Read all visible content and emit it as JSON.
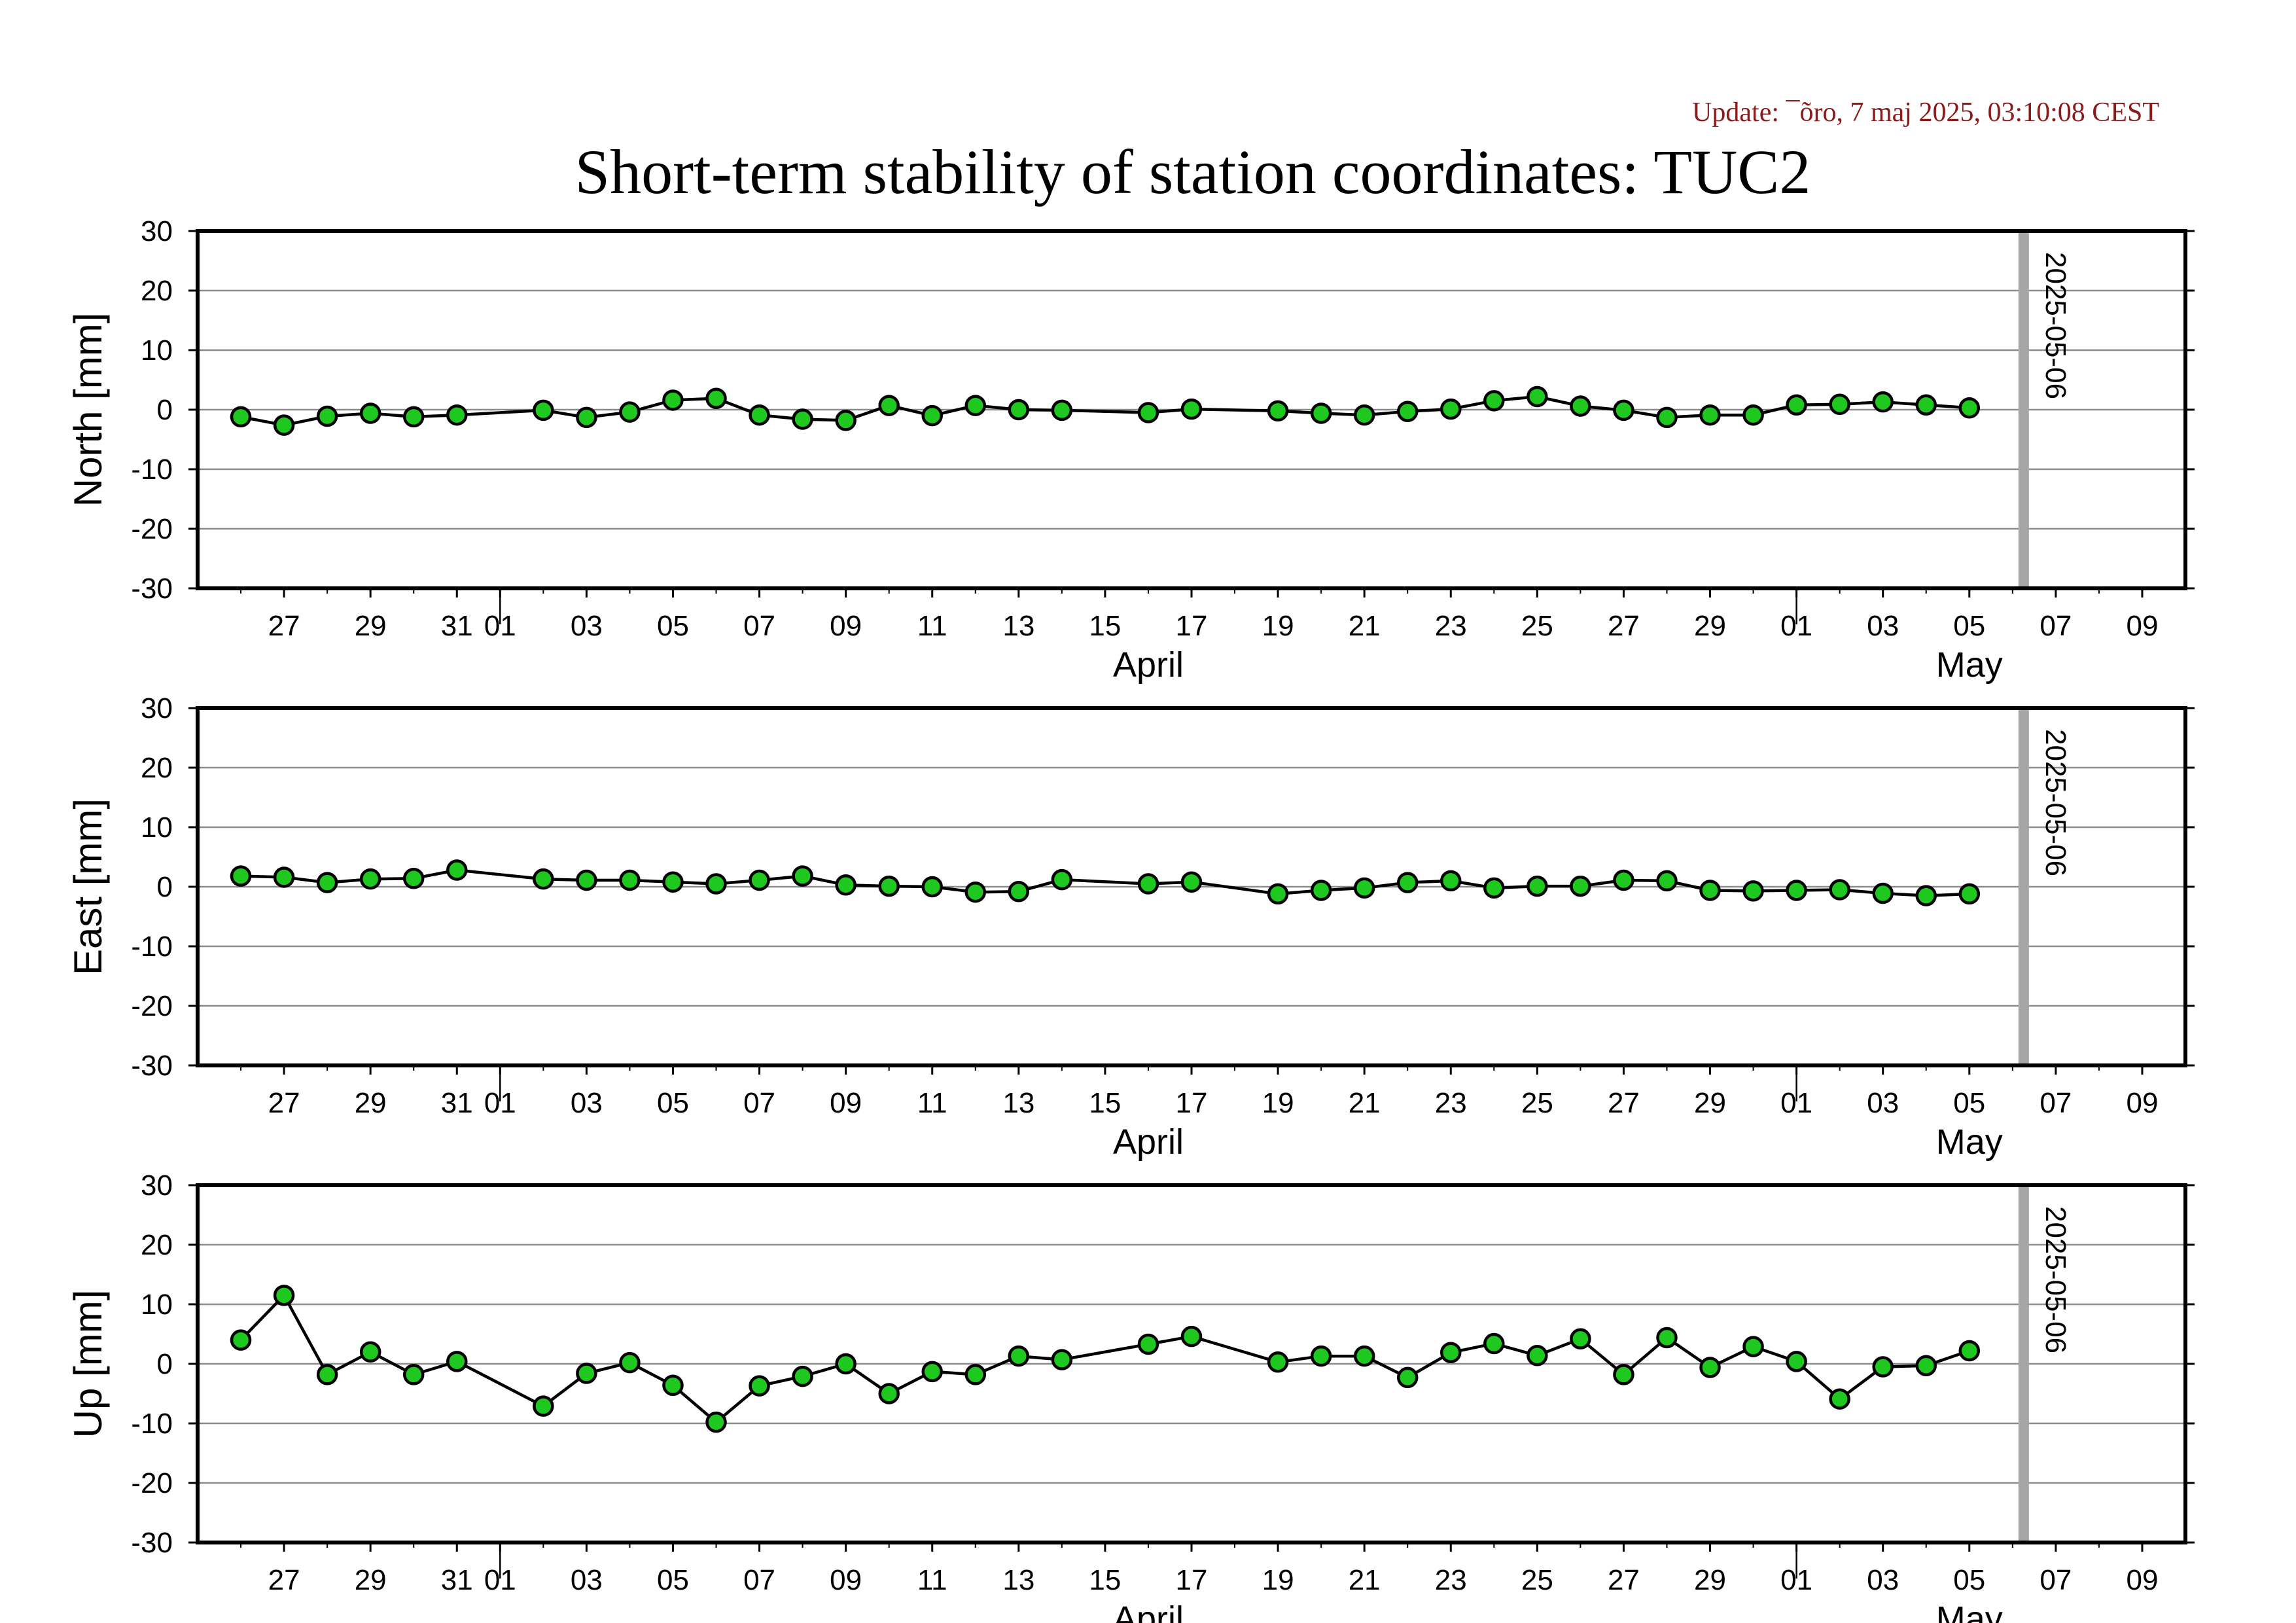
{
  "update_text": "Update: ¯õro, 7 maj 2025, 03:10:08 CEST",
  "update_color": "#8b1a1a",
  "title": "Short-term stability of station coordinates: TUC2",
  "colors": {
    "point_fill": "#1ec81e",
    "point_stroke": "#000000",
    "line": "#000000",
    "grid": "#8c8c8c",
    "current_date_line": "#a6a6a6"
  },
  "chart_data": [
    {
      "type": "line",
      "panel": "north",
      "ylabel": "North [mm]",
      "ylim": [
        -30,
        30
      ],
      "yticks": [
        "30",
        "20",
        "10",
        "0",
        "-10",
        "-20",
        "-30"
      ],
      "xlim": [
        "2025-03-25",
        "2025-05-10"
      ],
      "xtick_labels": [
        {
          "date": "2025-03-27",
          "label": "27"
        },
        {
          "date": "2025-03-29",
          "label": "29"
        },
        {
          "date": "2025-03-31",
          "label": "31"
        },
        {
          "date": "2025-04-01",
          "label": "01"
        },
        {
          "date": "2025-04-03",
          "label": "03"
        },
        {
          "date": "2025-04-05",
          "label": "05"
        },
        {
          "date": "2025-04-07",
          "label": "07"
        },
        {
          "date": "2025-04-09",
          "label": "09"
        },
        {
          "date": "2025-04-11",
          "label": "11"
        },
        {
          "date": "2025-04-13",
          "label": "13"
        },
        {
          "date": "2025-04-15",
          "label": "15"
        },
        {
          "date": "2025-04-17",
          "label": "17"
        },
        {
          "date": "2025-04-19",
          "label": "19"
        },
        {
          "date": "2025-04-21",
          "label": "21"
        },
        {
          "date": "2025-04-23",
          "label": "23"
        },
        {
          "date": "2025-04-25",
          "label": "25"
        },
        {
          "date": "2025-04-27",
          "label": "27"
        },
        {
          "date": "2025-04-29",
          "label": "29"
        },
        {
          "date": "2025-05-01",
          "label": "01"
        },
        {
          "date": "2025-05-03",
          "label": "03"
        },
        {
          "date": "2025-05-05",
          "label": "05"
        },
        {
          "date": "2025-05-07",
          "label": "07"
        },
        {
          "date": "2025-05-09",
          "label": "09"
        }
      ],
      "month_labels": [
        {
          "date": "2025-04-16",
          "label": "April"
        },
        {
          "date": "2025-05-05",
          "label": "May"
        }
      ],
      "current_date": "2025-05-06",
      "current_date_label": "2025-05-06",
      "grid": true,
      "points": [
        {
          "x": "2025-03-26",
          "y": -1.2
        },
        {
          "x": "2025-03-27",
          "y": -2.6
        },
        {
          "x": "2025-03-28",
          "y": -1.1
        },
        {
          "x": "2025-03-29",
          "y": -0.6
        },
        {
          "x": "2025-03-30",
          "y": -1.2
        },
        {
          "x": "2025-03-31",
          "y": -0.9
        },
        {
          "x": "2025-04-02",
          "y": -0.1
        },
        {
          "x": "2025-04-03",
          "y": -1.3
        },
        {
          "x": "2025-04-04",
          "y": -0.4
        },
        {
          "x": "2025-04-05",
          "y": 1.6
        },
        {
          "x": "2025-04-06",
          "y": 1.9
        },
        {
          "x": "2025-04-07",
          "y": -0.9
        },
        {
          "x": "2025-04-08",
          "y": -1.6
        },
        {
          "x": "2025-04-09",
          "y": -1.8
        },
        {
          "x": "2025-04-10",
          "y": 0.7
        },
        {
          "x": "2025-04-11",
          "y": -1.0
        },
        {
          "x": "2025-04-12",
          "y": 0.7
        },
        {
          "x": "2025-04-13",
          "y": 0.0
        },
        {
          "x": "2025-04-14",
          "y": -0.1
        },
        {
          "x": "2025-04-16",
          "y": -0.5
        },
        {
          "x": "2025-04-17",
          "y": 0.1
        },
        {
          "x": "2025-04-19",
          "y": -0.2
        },
        {
          "x": "2025-04-20",
          "y": -0.6
        },
        {
          "x": "2025-04-21",
          "y": -0.9
        },
        {
          "x": "2025-04-22",
          "y": -0.3
        },
        {
          "x": "2025-04-23",
          "y": 0.1
        },
        {
          "x": "2025-04-24",
          "y": 1.5
        },
        {
          "x": "2025-04-25",
          "y": 2.2
        },
        {
          "x": "2025-04-26",
          "y": 0.6
        },
        {
          "x": "2025-04-27",
          "y": -0.1
        },
        {
          "x": "2025-04-28",
          "y": -1.3
        },
        {
          "x": "2025-04-29",
          "y": -0.9
        },
        {
          "x": "2025-04-30",
          "y": -0.9
        },
        {
          "x": "2025-05-01",
          "y": 0.8
        },
        {
          "x": "2025-05-02",
          "y": 0.9
        },
        {
          "x": "2025-05-03",
          "y": 1.3
        },
        {
          "x": "2025-05-04",
          "y": 0.8
        },
        {
          "x": "2025-05-05",
          "y": 0.3
        }
      ]
    },
    {
      "type": "line",
      "panel": "east",
      "ylabel": "East [mm]",
      "ylim": [
        -30,
        30
      ],
      "yticks": [
        "30",
        "20",
        "10",
        "0",
        "-10",
        "-20",
        "-30"
      ],
      "xlim": [
        "2025-03-25",
        "2025-05-10"
      ],
      "xtick_labels": [
        {
          "date": "2025-03-27",
          "label": "27"
        },
        {
          "date": "2025-03-29",
          "label": "29"
        },
        {
          "date": "2025-03-31",
          "label": "31"
        },
        {
          "date": "2025-04-01",
          "label": "01"
        },
        {
          "date": "2025-04-03",
          "label": "03"
        },
        {
          "date": "2025-04-05",
          "label": "05"
        },
        {
          "date": "2025-04-07",
          "label": "07"
        },
        {
          "date": "2025-04-09",
          "label": "09"
        },
        {
          "date": "2025-04-11",
          "label": "11"
        },
        {
          "date": "2025-04-13",
          "label": "13"
        },
        {
          "date": "2025-04-15",
          "label": "15"
        },
        {
          "date": "2025-04-17",
          "label": "17"
        },
        {
          "date": "2025-04-19",
          "label": "19"
        },
        {
          "date": "2025-04-21",
          "label": "21"
        },
        {
          "date": "2025-04-23",
          "label": "23"
        },
        {
          "date": "2025-04-25",
          "label": "25"
        },
        {
          "date": "2025-04-27",
          "label": "27"
        },
        {
          "date": "2025-04-29",
          "label": "29"
        },
        {
          "date": "2025-05-01",
          "label": "01"
        },
        {
          "date": "2025-05-03",
          "label": "03"
        },
        {
          "date": "2025-05-05",
          "label": "05"
        },
        {
          "date": "2025-05-07",
          "label": "07"
        },
        {
          "date": "2025-05-09",
          "label": "09"
        }
      ],
      "month_labels": [
        {
          "date": "2025-04-16",
          "label": "April"
        },
        {
          "date": "2025-05-05",
          "label": "May"
        }
      ],
      "current_date": "2025-05-06",
      "current_date_label": "2025-05-06",
      "grid": true,
      "points": [
        {
          "x": "2025-03-26",
          "y": 1.8
        },
        {
          "x": "2025-03-27",
          "y": 1.6
        },
        {
          "x": "2025-03-28",
          "y": 0.7
        },
        {
          "x": "2025-03-29",
          "y": 1.3
        },
        {
          "x": "2025-03-30",
          "y": 1.4
        },
        {
          "x": "2025-03-31",
          "y": 2.8
        },
        {
          "x": "2025-04-02",
          "y": 1.3
        },
        {
          "x": "2025-04-03",
          "y": 1.1
        },
        {
          "x": "2025-04-04",
          "y": 1.1
        },
        {
          "x": "2025-04-05",
          "y": 0.8
        },
        {
          "x": "2025-04-06",
          "y": 0.5
        },
        {
          "x": "2025-04-07",
          "y": 1.1
        },
        {
          "x": "2025-04-08",
          "y": 1.8
        },
        {
          "x": "2025-04-09",
          "y": 0.3
        },
        {
          "x": "2025-04-10",
          "y": 0.1
        },
        {
          "x": "2025-04-11",
          "y": 0.0
        },
        {
          "x": "2025-04-12",
          "y": -0.9
        },
        {
          "x": "2025-04-13",
          "y": -0.8
        },
        {
          "x": "2025-04-14",
          "y": 1.2
        },
        {
          "x": "2025-04-16",
          "y": 0.5
        },
        {
          "x": "2025-04-17",
          "y": 0.8
        },
        {
          "x": "2025-04-19",
          "y": -1.2
        },
        {
          "x": "2025-04-20",
          "y": -0.6
        },
        {
          "x": "2025-04-21",
          "y": -0.2
        },
        {
          "x": "2025-04-22",
          "y": 0.7
        },
        {
          "x": "2025-04-23",
          "y": 1.0
        },
        {
          "x": "2025-04-24",
          "y": -0.2
        },
        {
          "x": "2025-04-25",
          "y": 0.1
        },
        {
          "x": "2025-04-26",
          "y": 0.1
        },
        {
          "x": "2025-04-27",
          "y": 1.1
        },
        {
          "x": "2025-04-28",
          "y": 1.0
        },
        {
          "x": "2025-04-29",
          "y": -0.6
        },
        {
          "x": "2025-04-30",
          "y": -0.7
        },
        {
          "x": "2025-05-01",
          "y": -0.6
        },
        {
          "x": "2025-05-02",
          "y": -0.5
        },
        {
          "x": "2025-05-03",
          "y": -1.1
        },
        {
          "x": "2025-05-04",
          "y": -1.5
        },
        {
          "x": "2025-05-05",
          "y": -1.2
        }
      ]
    },
    {
      "type": "line",
      "panel": "up",
      "ylabel": "Up [mm]",
      "ylim": [
        -30,
        30
      ],
      "yticks": [
        "30",
        "20",
        "10",
        "0",
        "-10",
        "-20",
        "-30"
      ],
      "xlim": [
        "2025-03-25",
        "2025-05-10"
      ],
      "xtick_labels": [
        {
          "date": "2025-03-27",
          "label": "27"
        },
        {
          "date": "2025-03-29",
          "label": "29"
        },
        {
          "date": "2025-03-31",
          "label": "31"
        },
        {
          "date": "2025-04-01",
          "label": "01"
        },
        {
          "date": "2025-04-03",
          "label": "03"
        },
        {
          "date": "2025-04-05",
          "label": "05"
        },
        {
          "date": "2025-04-07",
          "label": "07"
        },
        {
          "date": "2025-04-09",
          "label": "09"
        },
        {
          "date": "2025-04-11",
          "label": "11"
        },
        {
          "date": "2025-04-13",
          "label": "13"
        },
        {
          "date": "2025-04-15",
          "label": "15"
        },
        {
          "date": "2025-04-17",
          "label": "17"
        },
        {
          "date": "2025-04-19",
          "label": "19"
        },
        {
          "date": "2025-04-21",
          "label": "21"
        },
        {
          "date": "2025-04-23",
          "label": "23"
        },
        {
          "date": "2025-04-25",
          "label": "25"
        },
        {
          "date": "2025-04-27",
          "label": "27"
        },
        {
          "date": "2025-04-29",
          "label": "29"
        },
        {
          "date": "2025-05-01",
          "label": "01"
        },
        {
          "date": "2025-05-03",
          "label": "03"
        },
        {
          "date": "2025-05-05",
          "label": "05"
        },
        {
          "date": "2025-05-07",
          "label": "07"
        },
        {
          "date": "2025-05-09",
          "label": "09"
        }
      ],
      "month_labels": [
        {
          "date": "2025-04-16",
          "label": "April"
        },
        {
          "date": "2025-05-05",
          "label": "May"
        }
      ],
      "current_date": "2025-05-06",
      "current_date_label": "2025-05-06",
      "grid": true,
      "points": [
        {
          "x": "2025-03-26",
          "y": 4.0
        },
        {
          "x": "2025-03-27",
          "y": 11.5
        },
        {
          "x": "2025-03-28",
          "y": -1.8
        },
        {
          "x": "2025-03-29",
          "y": 2.0
        },
        {
          "x": "2025-03-30",
          "y": -1.8
        },
        {
          "x": "2025-03-31",
          "y": 0.4
        },
        {
          "x": "2025-04-02",
          "y": -7.1
        },
        {
          "x": "2025-04-03",
          "y": -1.6
        },
        {
          "x": "2025-04-04",
          "y": 0.2
        },
        {
          "x": "2025-04-05",
          "y": -3.6
        },
        {
          "x": "2025-04-06",
          "y": -9.8
        },
        {
          "x": "2025-04-07",
          "y": -3.7
        },
        {
          "x": "2025-04-08",
          "y": -2.1
        },
        {
          "x": "2025-04-09",
          "y": 0.0
        },
        {
          "x": "2025-04-10",
          "y": -5.0
        },
        {
          "x": "2025-04-11",
          "y": -1.3
        },
        {
          "x": "2025-04-12",
          "y": -1.8
        },
        {
          "x": "2025-04-13",
          "y": 1.3
        },
        {
          "x": "2025-04-14",
          "y": 0.7
        },
        {
          "x": "2025-04-16",
          "y": 3.3
        },
        {
          "x": "2025-04-17",
          "y": 4.6
        },
        {
          "x": "2025-04-19",
          "y": 0.3
        },
        {
          "x": "2025-04-20",
          "y": 1.3
        },
        {
          "x": "2025-04-21",
          "y": 1.3
        },
        {
          "x": "2025-04-22",
          "y": -2.3
        },
        {
          "x": "2025-04-23",
          "y": 1.9
        },
        {
          "x": "2025-04-24",
          "y": 3.4
        },
        {
          "x": "2025-04-25",
          "y": 1.4
        },
        {
          "x": "2025-04-26",
          "y": 4.2
        },
        {
          "x": "2025-04-27",
          "y": -1.8
        },
        {
          "x": "2025-04-28",
          "y": 4.4
        },
        {
          "x": "2025-04-29",
          "y": -0.6
        },
        {
          "x": "2025-04-30",
          "y": 2.9
        },
        {
          "x": "2025-05-01",
          "y": 0.4
        },
        {
          "x": "2025-05-02",
          "y": -5.9
        },
        {
          "x": "2025-05-03",
          "y": -0.5
        },
        {
          "x": "2025-05-04",
          "y": -0.3
        },
        {
          "x": "2025-05-05",
          "y": 2.2
        }
      ]
    }
  ]
}
